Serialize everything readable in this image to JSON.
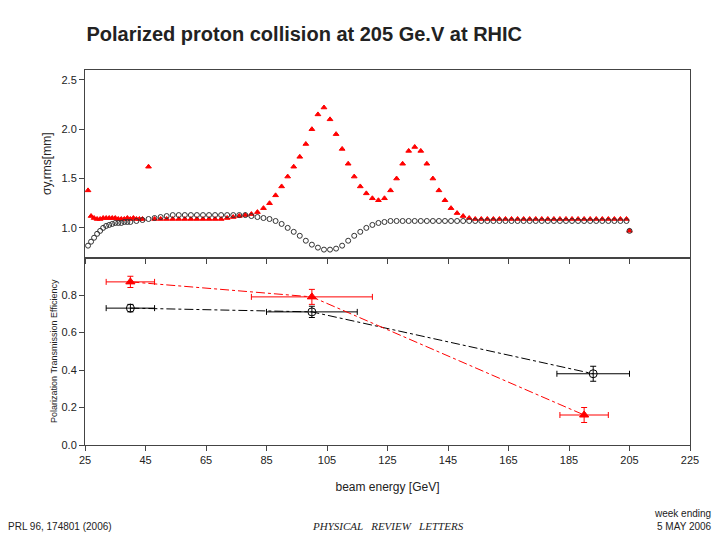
{
  "chart_data": [
    {
      "type": "scatter",
      "title": "Polarized proton collision at 205 Ge.V at RHIC",
      "ylabel": "σy,rms[mm]",
      "xlim": [
        25,
        225
      ],
      "xticks": [
        25,
        45,
        65,
        85,
        105,
        125,
        145,
        165,
        185,
        205,
        225
      ],
      "ylim": [
        0.7,
        2.6
      ],
      "yticks": [
        {
          "value": 1.0,
          "label": "1.0"
        },
        1.5,
        {
          "value": 2.0,
          "label": "2.0"
        },
        2.5
      ],
      "grid": false,
      "tick_labels": "y",
      "series": [
        {
          "color": "red",
          "marker": "triangle-up",
          "x": [
            26,
            27,
            28,
            29,
            30,
            31,
            32,
            33,
            34,
            35,
            36,
            37,
            38,
            39,
            40,
            41,
            42,
            43,
            44,
            46,
            48,
            50,
            52,
            54,
            56,
            58,
            60,
            62,
            64,
            66,
            68,
            70,
            72,
            74,
            76,
            78,
            80,
            82,
            84,
            86,
            88,
            90,
            92,
            94,
            96,
            98,
            100,
            102,
            104,
            106,
            108,
            110,
            112,
            114,
            116,
            118,
            120,
            122,
            124,
            126,
            128,
            130,
            132,
            134,
            136,
            138,
            140,
            142,
            144,
            146,
            148,
            150,
            152,
            154,
            156,
            158,
            160,
            162,
            164,
            166,
            168,
            170,
            172,
            174,
            176,
            178,
            180,
            182,
            184,
            186,
            188,
            190,
            192,
            194,
            196,
            198,
            200,
            202,
            204,
            205
          ],
          "values": [
            1.38,
            1.12,
            1.1,
            1.09,
            1.09,
            1.1,
            1.1,
            1.1,
            1.1,
            1.1,
            1.09,
            1.09,
            1.09,
            1.1,
            1.09,
            1.1,
            1.09,
            1.09,
            1.09,
            1.62,
            1.09,
            1.09,
            1.09,
            1.09,
            1.09,
            1.09,
            1.09,
            1.09,
            1.09,
            1.09,
            1.09,
            1.09,
            1.1,
            1.11,
            1.12,
            1.13,
            1.14,
            1.16,
            1.2,
            1.25,
            1.33,
            1.42,
            1.52,
            1.62,
            1.72,
            1.85,
            2.0,
            2.15,
            2.22,
            2.1,
            1.95,
            1.8,
            1.65,
            1.52,
            1.42,
            1.35,
            1.3,
            1.28,
            1.3,
            1.38,
            1.5,
            1.65,
            1.78,
            1.82,
            1.78,
            1.65,
            1.5,
            1.38,
            1.28,
            1.2,
            1.15,
            1.12,
            1.1,
            1.09,
            1.09,
            1.09,
            1.09,
            1.09,
            1.09,
            1.09,
            1.09,
            1.09,
            1.09,
            1.09,
            1.09,
            1.09,
            1.09,
            1.09,
            1.09,
            1.09,
            1.09,
            1.09,
            1.09,
            1.09,
            1.09,
            1.09,
            1.09,
            1.09,
            1.09,
            0.97
          ]
        },
        {
          "color": "#333333",
          "marker": "circle-open",
          "x": [
            26,
            27,
            28,
            29,
            30,
            31,
            32,
            33,
            34,
            35,
            36,
            37,
            38,
            39,
            40,
            42,
            44,
            46,
            48,
            50,
            52,
            54,
            56,
            58,
            60,
            62,
            64,
            66,
            68,
            70,
            72,
            74,
            76,
            78,
            80,
            82,
            84,
            86,
            88,
            90,
            92,
            94,
            96,
            98,
            100,
            102,
            104,
            106,
            108,
            110,
            112,
            114,
            116,
            118,
            120,
            122,
            124,
            126,
            128,
            130,
            132,
            134,
            136,
            138,
            140,
            142,
            144,
            146,
            148,
            150,
            152,
            154,
            156,
            158,
            160,
            162,
            164,
            166,
            168,
            170,
            172,
            174,
            176,
            178,
            180,
            182,
            184,
            186,
            188,
            190,
            192,
            194,
            196,
            198,
            200,
            202,
            204,
            205
          ],
          "values": [
            0.82,
            0.86,
            0.9,
            0.94,
            0.97,
            1.0,
            1.02,
            1.03,
            1.04,
            1.05,
            1.05,
            1.05,
            1.06,
            1.06,
            1.06,
            1.07,
            1.08,
            1.09,
            1.1,
            1.11,
            1.12,
            1.13,
            1.13,
            1.13,
            1.13,
            1.13,
            1.13,
            1.13,
            1.13,
            1.13,
            1.13,
            1.13,
            1.13,
            1.13,
            1.12,
            1.11,
            1.1,
            1.09,
            1.07,
            1.04,
            1.0,
            0.96,
            0.92,
            0.87,
            0.83,
            0.8,
            0.78,
            0.78,
            0.79,
            0.82,
            0.87,
            0.92,
            0.96,
            1.0,
            1.03,
            1.05,
            1.06,
            1.07,
            1.07,
            1.07,
            1.07,
            1.07,
            1.07,
            1.07,
            1.07,
            1.07,
            1.07,
            1.07,
            1.07,
            1.07,
            1.07,
            1.07,
            1.07,
            1.07,
            1.07,
            1.07,
            1.07,
            1.07,
            1.07,
            1.07,
            1.07,
            1.07,
            1.07,
            1.07,
            1.07,
            1.07,
            1.07,
            1.07,
            1.07,
            1.07,
            1.07,
            1.07,
            1.07,
            1.07,
            1.07,
            1.07,
            1.07,
            0.97
          ]
        }
      ]
    },
    {
      "type": "line",
      "xlabel": "beam energy [GeV]",
      "ylabel": "Polarization Transmission Efficiency",
      "xlim": [
        25,
        225
      ],
      "xticks": [
        25,
        45,
        65,
        85,
        105,
        125,
        145,
        165,
        185,
        205,
        225
      ],
      "ylim": [
        0,
        1.0
      ],
      "yticks": [
        {
          "value": 0,
          "label": "0.0"
        },
        0.2,
        0.4,
        0.6,
        0.8
      ],
      "grid": false,
      "series": [
        {
          "color": "black",
          "marker": "circle-open",
          "line_style": "dashdot",
          "x": [
            40,
            100,
            193
          ],
          "values": [
            0.73,
            0.71,
            0.38
          ],
          "xerr": [
            8,
            15,
            12
          ],
          "yerr": [
            0.02,
            0.03,
            0.04
          ]
        },
        {
          "color": "red",
          "marker": "triangle-up",
          "line_style": "dashdot",
          "x": [
            40,
            100,
            190
          ],
          "values": [
            0.87,
            0.79,
            0.16
          ],
          "xerr": [
            8,
            20,
            8
          ],
          "yerr": [
            0.03,
            0.04,
            0.04
          ]
        }
      ],
      "annotations": [
        "PRL 96, 174801 (2006)",
        "PHYSICAL   REVIEW   LETTERS",
        "week ending\n5 MAY 2006"
      ]
    }
  ]
}
